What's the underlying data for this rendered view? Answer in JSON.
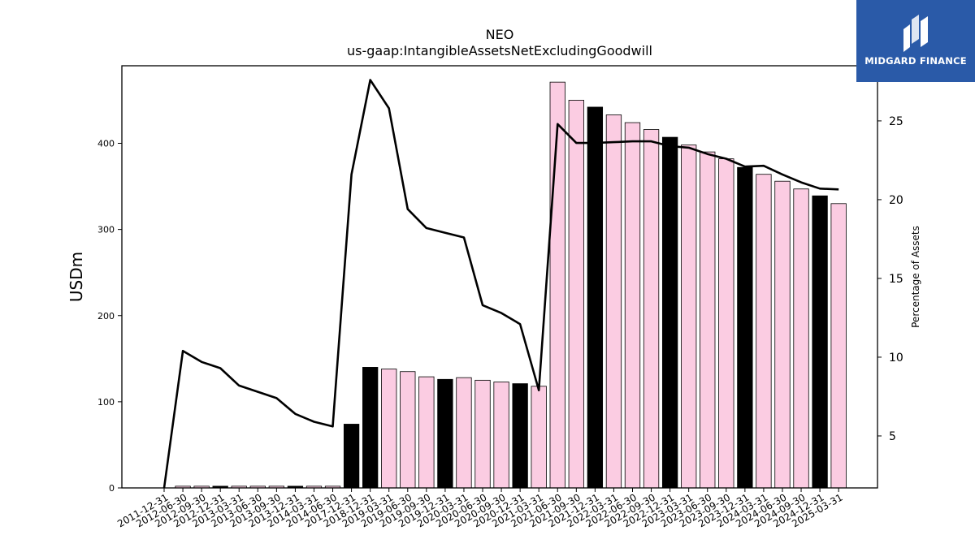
{
  "chart_data": {
    "type": "bar",
    "title": "NEO",
    "subtitle": "us-gaap:IntangibleAssetsNetExcludingGoodwill",
    "ylabel": "USDm",
    "y2label": "Percentage of Assets",
    "ylim": [
      0,
      490
    ],
    "y2lim": [
      1.7,
      28.5
    ],
    "yticks": [
      0,
      100,
      200,
      300,
      400
    ],
    "y2ticks": [
      5,
      10,
      15,
      20,
      25
    ],
    "categories": [
      "2011-12-31",
      "2012-06-30",
      "2012-09-30",
      "2012-12-31",
      "2013-03-31",
      "2013-06-30",
      "2013-09-30",
      "2013-12-31",
      "2014-03-31",
      "2014-06-30",
      "2017-12-31",
      "2018-12-31",
      "2019-03-31",
      "2019-06-30",
      "2019-09-30",
      "2019-12-31",
      "2020-03-31",
      "2020-06-30",
      "2020-09-30",
      "2020-12-31",
      "2021-03-31",
      "2021-06-30",
      "2021-09-30",
      "2021-12-31",
      "2022-03-31",
      "2022-06-30",
      "2022-09-30",
      "2022-12-31",
      "2023-03-31",
      "2023-06-30",
      "2023-09-30",
      "2023-12-31",
      "2024-03-31",
      "2024-06-30",
      "2024-09-30",
      "2024-12-31",
      "2025-03-31"
    ],
    "series": [
      {
        "name": "",
        "kind": "bar",
        "values": [
          0,
          2,
          2,
          2,
          2,
          2,
          2,
          2,
          2,
          2,
          74,
          140,
          138,
          135,
          129,
          126,
          128,
          125,
          123,
          121,
          118,
          471,
          450,
          442,
          433,
          424,
          416,
          407,
          398,
          390,
          382,
          372,
          364,
          356,
          347,
          339,
          330
        ],
        "fiscal_year_end": [
          true,
          false,
          false,
          true,
          false,
          false,
          false,
          true,
          false,
          false,
          true,
          true,
          false,
          false,
          false,
          true,
          false,
          false,
          false,
          true,
          false,
          false,
          false,
          true,
          false,
          false,
          false,
          true,
          false,
          false,
          false,
          true,
          false,
          false,
          false,
          true,
          false
        ]
      },
      {
        "name": "",
        "kind": "line",
        "axis": "right",
        "values": [
          1.7,
          10.4,
          9.7,
          9.3,
          8.2,
          7.8,
          7.4,
          6.4,
          5.9,
          5.6,
          21.6,
          27.6,
          25.8,
          19.4,
          18.2,
          17.9,
          17.6,
          13.3,
          12.8,
          12.1,
          7.9,
          24.8,
          23.6,
          23.6,
          23.65,
          23.7,
          23.7,
          23.4,
          23.3,
          22.9,
          22.6,
          22.1,
          22.15,
          21.6,
          21.1,
          20.7,
          20.65
        ]
      }
    ],
    "colors": {
      "fiscal_year_end_bar": "#000000",
      "quarter_bar": "#fbcce2",
      "bar_edge": "#000000",
      "line": "#000000"
    },
    "grid": false
  },
  "logo": {
    "text": "MIDGARD FINANCE",
    "background": "#2a5aa8"
  }
}
